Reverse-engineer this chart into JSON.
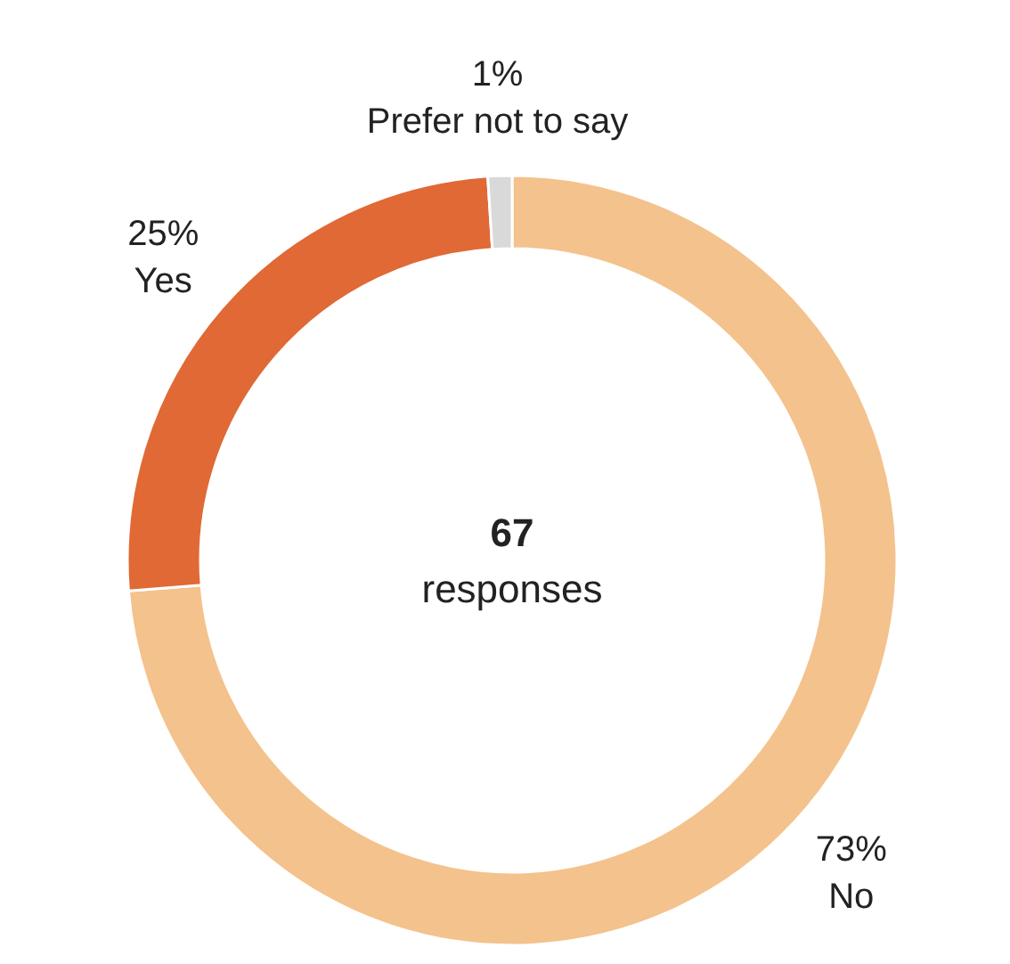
{
  "chart_data": {
    "type": "donut",
    "categories": [
      "No",
      "Yes",
      "Prefer not to say"
    ],
    "values": [
      73,
      25,
      1
    ],
    "value_labels": [
      "73%",
      "25%",
      "1%"
    ],
    "colors": [
      "#f4c28c",
      "#e06935",
      "#d9d9d9"
    ],
    "annotations": [
      "67",
      "responses"
    ],
    "legend": false
  }
}
